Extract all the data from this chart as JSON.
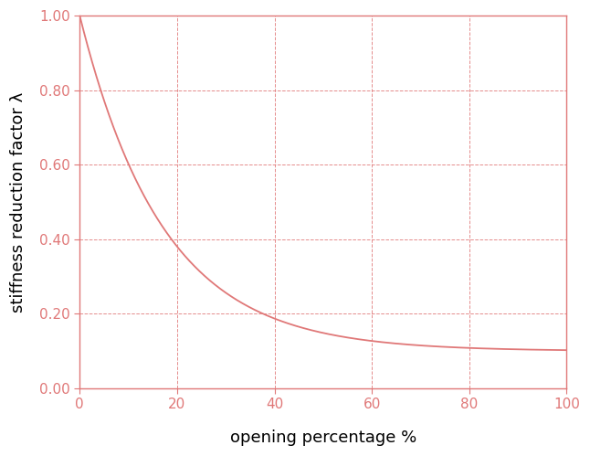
{
  "title": "",
  "xlabel": "opening percentage %",
  "ylabel": "stiffness reduction factor λ",
  "xlim": [
    0,
    100
  ],
  "ylim": [
    0.0,
    1.0
  ],
  "xticks": [
    0,
    20,
    40,
    60,
    80,
    100
  ],
  "yticks": [
    0.0,
    0.2,
    0.4,
    0.6,
    0.8,
    1.0
  ],
  "line_color": "#e07878",
  "grid_color": "#e07878",
  "spine_color": "#e07878",
  "tick_color": "#e07878",
  "tick_label_color": "#e07878",
  "axis_label_color": "#000000",
  "bg_color": "#ffffff",
  "line_width": 1.3,
  "grid_linewidth": 0.7,
  "xlabel_fontsize": 13,
  "ylabel_fontsize": 13,
  "tick_fontsize": 11,
  "curve_a": 0.9,
  "curve_b": 0.0583,
  "curve_c": 0.1
}
